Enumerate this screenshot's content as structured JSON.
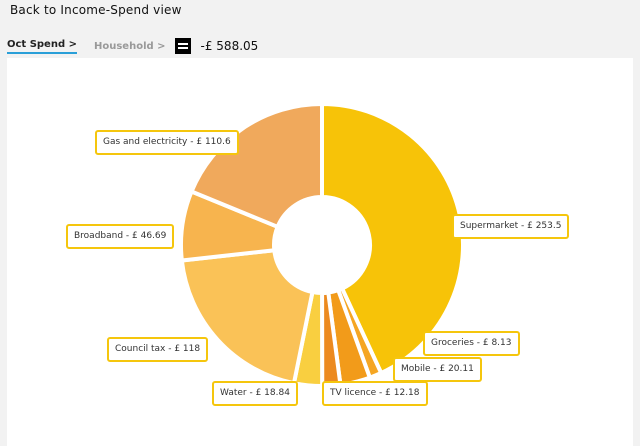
{
  "header": {
    "back_label": "Back to Income-Spend view"
  },
  "breadcrumb": {
    "current": "Oct Spend >",
    "next": "Household >",
    "total": "-£ 588.05"
  },
  "chart_data": {
    "type": "pie",
    "donut": true,
    "slices": [
      {
        "label": "Supermarket - £ 253.5",
        "value": 253.5,
        "color": "#f7c308"
      },
      {
        "label": "Groceries - £ 8.13",
        "value": 8.13,
        "color": "#f5a623"
      },
      {
        "label": "Mobile - £ 20.11",
        "value": 20.11,
        "color": "#f29b1a"
      },
      {
        "label": "TV licence - £ 12.18",
        "value": 12.18,
        "color": "#ec8a1f"
      },
      {
        "label": "Water - £ 18.84",
        "value": 18.84,
        "color": "#f9cf40"
      },
      {
        "label": "Council tax - £ 118",
        "value": 118,
        "color": "#fac257"
      },
      {
        "label": "Broadband - £ 46.69",
        "value": 46.69,
        "color": "#f7b44e"
      },
      {
        "label": "Gas and electricity - £ 110.6",
        "value": 110.6,
        "color": "#f0a95c"
      }
    ]
  }
}
